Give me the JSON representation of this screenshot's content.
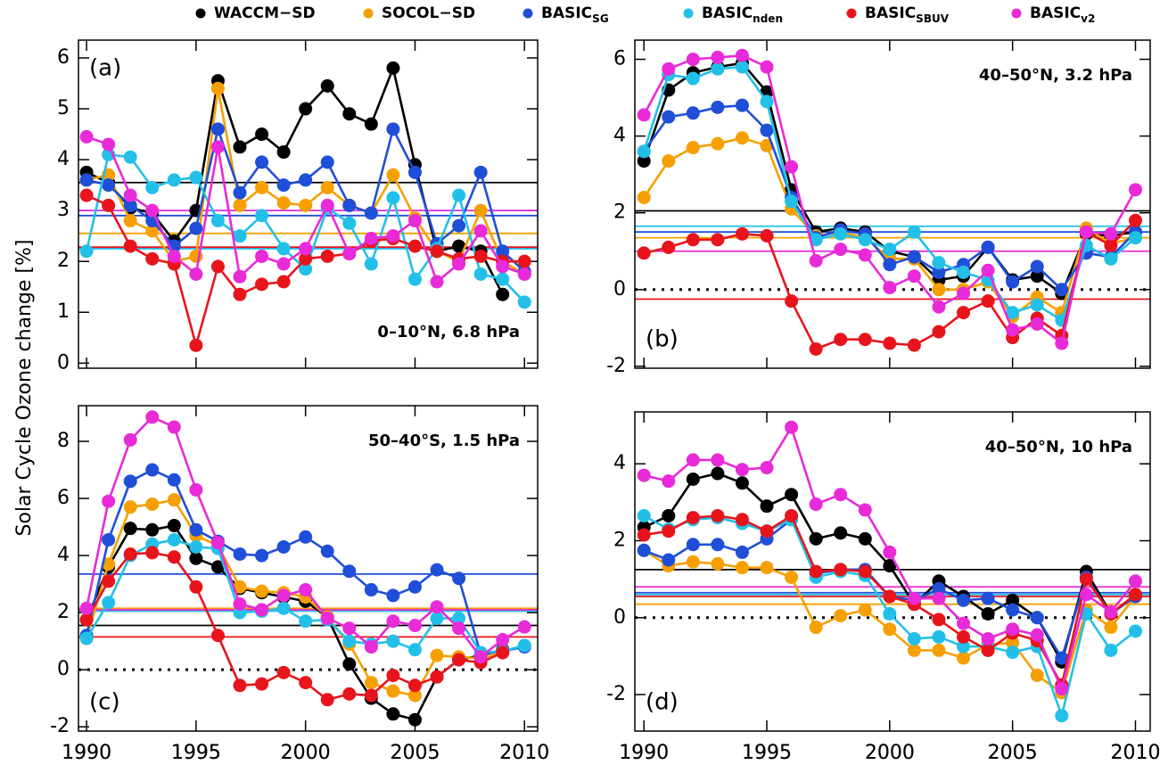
{
  "y_label": "Solar Cycle Ozone change [%]",
  "chart_data": [
    {
      "type": "line",
      "panel_label": "(a)",
      "annotation": "0–10°N, 6.8 hPa",
      "x": [
        1990,
        1991,
        1992,
        1993,
        1994,
        1995,
        1996,
        1997,
        1998,
        1999,
        2000,
        2001,
        2002,
        2003,
        2004,
        2005,
        2006,
        2007,
        2008,
        2009,
        2010
      ],
      "xlim": [
        1989.63,
        2010.6
      ],
      "xticks": [
        1990,
        1995,
        2000,
        2005,
        2010
      ],
      "ylim": [
        -0.1,
        6.35
      ],
      "yticks": [
        0,
        1,
        2,
        3,
        4,
        5,
        6
      ],
      "zero_line": false,
      "series": [
        {
          "name": "WACCM−SD",
          "color": "#000000",
          "mean": 3.55,
          "values": [
            3.75,
            3.55,
            3.05,
            2.95,
            2.4,
            3.0,
            5.55,
            4.25,
            4.5,
            4.15,
            5.0,
            5.45,
            4.9,
            4.7,
            5.8,
            3.9,
            2.2,
            2.3,
            2.2,
            1.35,
            null
          ]
        },
        {
          "name": "SOCOL−SD",
          "color": "#f5a000",
          "mean": 2.55,
          "values": [
            3.6,
            3.7,
            2.8,
            2.6,
            2.0,
            2.1,
            5.4,
            3.1,
            3.45,
            3.15,
            3.1,
            3.45,
            3.1,
            2.95,
            3.7,
            2.85,
            2.2,
            2.0,
            3.0,
            2.0,
            1.75
          ]
        },
        {
          "name": "BASIC",
          "subscript": "SG",
          "color": "#1f4fd8",
          "mean": 2.9,
          "values": [
            3.6,
            3.5,
            3.1,
            2.8,
            2.3,
            2.65,
            4.6,
            3.35,
            3.95,
            3.5,
            3.6,
            3.95,
            3.1,
            2.95,
            4.6,
            3.75,
            2.35,
            2.7,
            3.75,
            2.2,
            1.8
          ]
        },
        {
          "name": "BASIC",
          "subscript": "nden",
          "color": "#22c0e8",
          "mean": 2.25,
          "values": [
            2.2,
            4.1,
            4.05,
            3.45,
            3.6,
            3.65,
            2.8,
            2.5,
            2.9,
            2.25,
            1.85,
            3.05,
            2.75,
            1.95,
            3.25,
            1.65,
            2.25,
            3.3,
            1.75,
            1.65,
            1.2
          ]
        },
        {
          "name": "BASIC",
          "subscript": "SBUV",
          "color": "#e8141c",
          "mean": 2.28,
          "values": [
            3.3,
            3.1,
            2.3,
            2.05,
            1.95,
            0.35,
            1.9,
            1.35,
            1.55,
            1.6,
            2.05,
            2.1,
            2.15,
            2.4,
            2.45,
            2.3,
            2.2,
            2.05,
            2.1,
            2.0,
            2.0
          ]
        },
        {
          "name": "BASIC",
          "subscript": "v2",
          "color": "#e82ad8",
          "mean": 3.0,
          "values": [
            4.45,
            4.3,
            3.3,
            3.0,
            2.1,
            1.75,
            4.25,
            1.7,
            2.1,
            1.95,
            2.25,
            3.1,
            2.15,
            2.45,
            2.5,
            2.8,
            1.6,
            1.95,
            2.6,
            1.9,
            1.75
          ]
        }
      ]
    },
    {
      "type": "line",
      "panel_label": "(b)",
      "annotation": "40–50°N, 3.2 hPa",
      "x": [
        1990,
        1991,
        1992,
        1993,
        1994,
        1995,
        1996,
        1997,
        1998,
        1999,
        2000,
        2001,
        2002,
        2003,
        2004,
        2005,
        2006,
        2007,
        2008,
        2009,
        2010
      ],
      "xlim": [
        1989.63,
        2010.6
      ],
      "xticks": [
        1990,
        1995,
        2000,
        2005,
        2010
      ],
      "ylim": [
        -2.05,
        6.5
      ],
      "yticks": [
        -2,
        0,
        2,
        4,
        6
      ],
      "zero_line": true,
      "series": [
        {
          "name": "WACCM−SD",
          "color": "#000000",
          "mean": 2.05,
          "values": [
            3.35,
            5.2,
            5.65,
            5.8,
            5.9,
            5.15,
            2.6,
            1.5,
            1.6,
            1.5,
            1.0,
            0.85,
            0.25,
            0.35,
            1.1,
            0.25,
            0.35,
            -0.1,
            1.45,
            1.4,
            1.5
          ]
        },
        {
          "name": "SOCOL−SD",
          "color": "#f5a000",
          "mean": 1.35,
          "values": [
            2.4,
            3.35,
            3.7,
            3.8,
            3.95,
            3.75,
            2.1,
            1.4,
            1.5,
            1.35,
            0.8,
            0.8,
            0.0,
            0.0,
            0.2,
            -0.7,
            -0.2,
            -0.6,
            1.6,
            1.2,
            1.35
          ]
        },
        {
          "name": "BASIC",
          "subscript": "SG",
          "color": "#1f4fd8",
          "mean": 1.5,
          "values": [
            3.6,
            4.5,
            4.6,
            4.75,
            4.8,
            4.15,
            2.4,
            1.35,
            1.55,
            1.45,
            0.65,
            0.85,
            0.45,
            0.65,
            1.1,
            0.2,
            0.6,
            0.0,
            0.95,
            0.85,
            1.5
          ]
        },
        {
          "name": "BASIC",
          "subscript": "nden",
          "color": "#22c0e8",
          "mean": 1.65,
          "values": [
            3.6,
            5.6,
            5.5,
            5.75,
            5.8,
            4.9,
            2.3,
            1.3,
            1.45,
            1.3,
            1.05,
            1.5,
            0.7,
            0.45,
            0.25,
            -0.6,
            -0.4,
            -0.8,
            1.15,
            0.8,
            1.35
          ]
        },
        {
          "name": "BASIC",
          "subscript": "SBUV",
          "color": "#e8141c",
          "mean": -0.25,
          "values": [
            0.95,
            1.1,
            1.3,
            1.3,
            1.45,
            1.4,
            -0.3,
            -1.55,
            -1.3,
            -1.3,
            -1.4,
            -1.45,
            -1.1,
            -0.6,
            -0.3,
            -1.25,
            -0.75,
            -1.2,
            1.5,
            1.15,
            1.8
          ]
        },
        {
          "name": "BASIC",
          "subscript": "v2",
          "color": "#e82ad8",
          "mean": 1.0,
          "values": [
            4.55,
            5.75,
            6.0,
            6.05,
            6.1,
            5.8,
            3.2,
            0.75,
            1.05,
            0.9,
            0.05,
            0.35,
            -0.45,
            -0.1,
            0.5,
            -1.05,
            -0.9,
            -1.4,
            1.5,
            1.45,
            2.6
          ]
        }
      ]
    },
    {
      "type": "line",
      "panel_label": "(c)",
      "annotation": "50–40°S, 1.5 hPa",
      "x": [
        1990,
        1991,
        1992,
        1993,
        1994,
        1995,
        1996,
        1997,
        1998,
        1999,
        2000,
        2001,
        2002,
        2003,
        2004,
        2005,
        2006,
        2007,
        2008,
        2009,
        2010
      ],
      "xlim": [
        1989.63,
        2010.6
      ],
      "xticks": [
        1990,
        1995,
        2000,
        2005,
        2010
      ],
      "ylim": [
        -2.15,
        9.25
      ],
      "yticks": [
        -2,
        0,
        2,
        4,
        6,
        8
      ],
      "zero_line": true,
      "series": [
        {
          "name": "WACCM−SD",
          "color": "#000000",
          "mean": 1.55,
          "values": [
            1.75,
            3.6,
            4.95,
            4.9,
            5.05,
            3.9,
            3.6,
            2.85,
            2.7,
            2.55,
            2.4,
            1.85,
            0.2,
            -1.0,
            -1.55,
            -1.75,
            -0.25,
            0.35,
            0.5,
            0.7,
            null
          ]
        },
        {
          "name": "SOCOL−SD",
          "color": "#f5a000",
          "mean": 2.15,
          "values": [
            1.1,
            3.7,
            5.7,
            5.8,
            5.95,
            4.7,
            4.35,
            2.9,
            2.75,
            2.7,
            2.55,
            1.85,
            0.9,
            -0.45,
            -0.75,
            -0.9,
            0.5,
            0.45,
            0.4,
            0.6,
            null
          ]
        },
        {
          "name": "BASIC",
          "subscript": "SG",
          "color": "#1f4fd8",
          "mean": 3.35,
          "values": [
            1.2,
            4.55,
            6.6,
            7.0,
            6.65,
            4.9,
            4.5,
            4.05,
            4.0,
            4.3,
            4.65,
            4.15,
            3.45,
            2.8,
            2.6,
            2.9,
            3.5,
            3.2,
            0.55,
            0.65,
            0.8
          ]
        },
        {
          "name": "BASIC",
          "subscript": "nden",
          "color": "#22c0e8",
          "mean": 2.05,
          "values": [
            1.1,
            2.35,
            4.0,
            4.4,
            4.55,
            4.3,
            4.25,
            2.0,
            2.05,
            2.15,
            1.7,
            1.75,
            1.0,
            0.9,
            1.0,
            0.7,
            1.8,
            1.8,
            0.6,
            0.65,
            0.85
          ]
        },
        {
          "name": "BASIC",
          "subscript": "SBUV",
          "color": "#e8141c",
          "mean": 1.15,
          "values": [
            1.75,
            3.1,
            4.05,
            4.1,
            3.95,
            2.9,
            1.2,
            -0.55,
            -0.5,
            -0.1,
            -0.45,
            -1.05,
            -0.85,
            -0.9,
            -0.2,
            -0.55,
            -0.25,
            0.35,
            0.25,
            0.6,
            null
          ]
        },
        {
          "name": "BASIC",
          "subscript": "v2",
          "color": "#e82ad8",
          "mean": 2.1,
          "values": [
            2.15,
            5.9,
            8.05,
            8.85,
            8.5,
            6.3,
            4.45,
            2.3,
            2.1,
            2.6,
            2.8,
            1.8,
            1.45,
            0.8,
            1.7,
            1.55,
            2.2,
            1.45,
            0.45,
            1.05,
            1.5
          ]
        }
      ]
    },
    {
      "type": "line",
      "panel_label": "(d)",
      "annotation": "40–50°N, 10 hPa",
      "x": [
        1990,
        1991,
        1992,
        1993,
        1994,
        1995,
        1996,
        1997,
        1998,
        1999,
        2000,
        2001,
        2002,
        2003,
        2004,
        2005,
        2006,
        2007,
        2008,
        2009,
        2010
      ],
      "xlim": [
        1989.63,
        2010.6
      ],
      "xticks": [
        1990,
        1995,
        2000,
        2005,
        2010
      ],
      "ylim": [
        -2.95,
        5.35
      ],
      "yticks": [
        -2,
        0,
        2,
        4
      ],
      "zero_line": true,
      "series": [
        {
          "name": "WACCM−SD",
          "color": "#000000",
          "mean": 1.25,
          "values": [
            2.35,
            2.65,
            3.6,
            3.75,
            3.5,
            2.9,
            3.2,
            2.05,
            2.2,
            2.05,
            1.35,
            0.35,
            0.95,
            0.55,
            0.1,
            0.45,
            0.0,
            -1.15,
            1.2,
            0.1,
            0.6
          ]
        },
        {
          "name": "SOCOL−SD",
          "color": "#f5a000",
          "mean": 0.35,
          "values": [
            1.75,
            1.35,
            1.45,
            1.4,
            1.3,
            1.3,
            1.05,
            -0.25,
            0.05,
            0.2,
            -0.3,
            -0.85,
            -0.85,
            -1.05,
            -0.7,
            -0.65,
            -1.5,
            -1.95,
            0.2,
            -0.25,
            0.55
          ]
        },
        {
          "name": "BASIC",
          "subscript": "SG",
          "color": "#1f4fd8",
          "mean": 0.65,
          "values": [
            1.75,
            1.5,
            1.9,
            1.9,
            1.7,
            2.05,
            2.55,
            1.15,
            1.25,
            1.25,
            0.55,
            0.45,
            0.75,
            0.45,
            0.5,
            0.2,
            0.0,
            -1.05,
            1.05,
            0.1,
            0.55
          ]
        },
        {
          "name": "BASIC",
          "subscript": "nden",
          "color": "#22c0e8",
          "mean": 0.6,
          "values": [
            2.65,
            2.3,
            2.55,
            2.6,
            2.45,
            2.25,
            2.55,
            1.05,
            1.2,
            1.1,
            0.1,
            -0.55,
            -0.5,
            -0.75,
            -0.75,
            -0.9,
            -0.75,
            -2.55,
            0.1,
            -0.85,
            -0.35
          ]
        },
        {
          "name": "BASIC",
          "subscript": "SBUV",
          "color": "#e8141c",
          "mean": 0.55,
          "values": [
            2.15,
            2.25,
            2.6,
            2.65,
            2.55,
            2.25,
            2.65,
            1.2,
            1.25,
            1.2,
            0.55,
            0.35,
            -0.05,
            -0.5,
            -0.85,
            -0.4,
            -0.6,
            -1.75,
            1.0,
            0.1,
            0.6
          ]
        },
        {
          "name": "BASIC",
          "subscript": "v2",
          "color": "#e82ad8",
          "mean": 0.8,
          "values": [
            3.7,
            3.55,
            4.1,
            4.1,
            3.85,
            3.9,
            4.95,
            2.95,
            3.2,
            2.8,
            1.7,
            0.5,
            0.5,
            -0.15,
            -0.55,
            -0.3,
            -0.45,
            -1.85,
            0.6,
            0.15,
            0.95
          ]
        }
      ]
    }
  ]
}
